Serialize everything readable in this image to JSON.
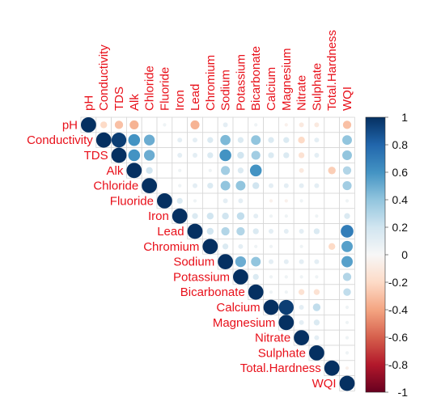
{
  "chart_data": {
    "type": "heatmap",
    "variables": [
      "pH",
      "Conductivity",
      "TDS",
      "Alk",
      "Chloride",
      "Fluoride",
      "Iron",
      "Lead",
      "Chromium",
      "Sodium",
      "Potassium",
      "Bicarbonate",
      "Calcium",
      "Magnesium",
      "Nitrate",
      "Sulphate",
      "Total.Hardness",
      "WQI"
    ],
    "matrix_shape": "upper-triangular",
    "color_scale": {
      "min": -1,
      "max": 1,
      "ticks": [
        "1",
        "0.8",
        "0.6",
        "0.4",
        "0.2",
        "0",
        "-0.2",
        "-0.4",
        "-0.6",
        "-0.8",
        "-1"
      ],
      "negative_color": "#67001f",
      "zero_color": "#f7f7f7",
      "positive_color": "#053061"
    },
    "cells": [
      {
        "r": 0,
        "c": 0,
        "v": 1
      },
      {
        "r": 0,
        "c": 1,
        "v": -0.2
      },
      {
        "r": 0,
        "c": 2,
        "v": -0.3
      },
      {
        "r": 0,
        "c": 3,
        "v": -0.35
      },
      {
        "r": 0,
        "c": 5,
        "v": 0.05
      },
      {
        "r": 0,
        "c": 7,
        "v": -0.35
      },
      {
        "r": 0,
        "c": 9,
        "v": 0.1
      },
      {
        "r": 0,
        "c": 11,
        "v": 0.05
      },
      {
        "r": 0,
        "c": 13,
        "v": -0.05
      },
      {
        "r": 0,
        "c": 14,
        "v": -0.1
      },
      {
        "r": 0,
        "c": 15,
        "v": -0.1
      },
      {
        "r": 0,
        "c": 17,
        "v": -0.3
      },
      {
        "r": 1,
        "c": 1,
        "v": 1
      },
      {
        "r": 1,
        "c": 2,
        "v": 0.95
      },
      {
        "r": 1,
        "c": 3,
        "v": 0.6
      },
      {
        "r": 1,
        "c": 4,
        "v": 0.5
      },
      {
        "r": 1,
        "c": 6,
        "v": 0.1
      },
      {
        "r": 1,
        "c": 7,
        "v": 0.1
      },
      {
        "r": 1,
        "c": 8,
        "v": 0.15
      },
      {
        "r": 1,
        "c": 9,
        "v": 0.45
      },
      {
        "r": 1,
        "c": 10,
        "v": 0.15
      },
      {
        "r": 1,
        "c": 11,
        "v": 0.4
      },
      {
        "r": 1,
        "c": 12,
        "v": 0.15
      },
      {
        "r": 1,
        "c": 13,
        "v": 0.15
      },
      {
        "r": 1,
        "c": 14,
        "v": -0.2
      },
      {
        "r": 1,
        "c": 15,
        "v": 0.1
      },
      {
        "r": 1,
        "c": 17,
        "v": 0.4
      },
      {
        "r": 2,
        "c": 2,
        "v": 1
      },
      {
        "r": 2,
        "c": 3,
        "v": 0.6
      },
      {
        "r": 2,
        "c": 4,
        "v": 0.5
      },
      {
        "r": 2,
        "c": 6,
        "v": 0.1
      },
      {
        "r": 2,
        "c": 7,
        "v": 0.1
      },
      {
        "r": 2,
        "c": 8,
        "v": 0.15
      },
      {
        "r": 2,
        "c": 9,
        "v": 0.6
      },
      {
        "r": 2,
        "c": 10,
        "v": 0.2
      },
      {
        "r": 2,
        "c": 11,
        "v": 0.35
      },
      {
        "r": 2,
        "c": 12,
        "v": 0.15
      },
      {
        "r": 2,
        "c": 13,
        "v": 0.15
      },
      {
        "r": 2,
        "c": 14,
        "v": -0.15
      },
      {
        "r": 2,
        "c": 15,
        "v": 0.1
      },
      {
        "r": 2,
        "c": 17,
        "v": 0.4
      },
      {
        "r": 3,
        "c": 3,
        "v": 1
      },
      {
        "r": 3,
        "c": 4,
        "v": 0.2
      },
      {
        "r": 3,
        "c": 6,
        "v": 0.05
      },
      {
        "r": 3,
        "c": 8,
        "v": 0.05
      },
      {
        "r": 3,
        "c": 9,
        "v": 0.35
      },
      {
        "r": 3,
        "c": 10,
        "v": 0.15
      },
      {
        "r": 3,
        "c": 11,
        "v": 0.6
      },
      {
        "r": 3,
        "c": 14,
        "v": -0.1
      },
      {
        "r": 3,
        "c": 16,
        "v": -0.25
      },
      {
        "r": 3,
        "c": 17,
        "v": 0.3
      },
      {
        "r": 4,
        "c": 4,
        "v": 1
      },
      {
        "r": 4,
        "c": 6,
        "v": 0.05
      },
      {
        "r": 4,
        "c": 7,
        "v": 0.1
      },
      {
        "r": 4,
        "c": 8,
        "v": 0.15
      },
      {
        "r": 4,
        "c": 9,
        "v": 0.4
      },
      {
        "r": 4,
        "c": 10,
        "v": 0.4
      },
      {
        "r": 4,
        "c": 11,
        "v": 0.2
      },
      {
        "r": 4,
        "c": 12,
        "v": 0.1
      },
      {
        "r": 4,
        "c": 13,
        "v": 0.1
      },
      {
        "r": 4,
        "c": 14,
        "v": 0.1
      },
      {
        "r": 4,
        "c": 15,
        "v": 0.1
      },
      {
        "r": 4,
        "c": 17,
        "v": 0.35
      },
      {
        "r": 5,
        "c": 5,
        "v": 1
      },
      {
        "r": 5,
        "c": 6,
        "v": 0.15
      },
      {
        "r": 5,
        "c": 7,
        "v": 0.05
      },
      {
        "r": 5,
        "c": 9,
        "v": 0.1
      },
      {
        "r": 5,
        "c": 10,
        "v": 0.1
      },
      {
        "r": 5,
        "c": 12,
        "v": -0.05
      },
      {
        "r": 5,
        "c": 13,
        "v": -0.05
      },
      {
        "r": 5,
        "c": 14,
        "v": 0.05
      },
      {
        "r": 5,
        "c": 17,
        "v": 0.05
      },
      {
        "r": 6,
        "c": 6,
        "v": 1
      },
      {
        "r": 6,
        "c": 7,
        "v": 0.15
      },
      {
        "r": 6,
        "c": 8,
        "v": 0.2
      },
      {
        "r": 6,
        "c": 9,
        "v": 0.2
      },
      {
        "r": 6,
        "c": 10,
        "v": 0.25
      },
      {
        "r": 6,
        "c": 11,
        "v": 0.1
      },
      {
        "r": 6,
        "c": 12,
        "v": 0.05
      },
      {
        "r": 6,
        "c": 13,
        "v": 0.05
      },
      {
        "r": 6,
        "c": 15,
        "v": 0.05
      },
      {
        "r": 6,
        "c": 17,
        "v": 0.15
      },
      {
        "r": 7,
        "c": 7,
        "v": 1
      },
      {
        "r": 7,
        "c": 8,
        "v": 0.2
      },
      {
        "r": 7,
        "c": 9,
        "v": 0.3
      },
      {
        "r": 7,
        "c": 10,
        "v": 0.3
      },
      {
        "r": 7,
        "c": 11,
        "v": 0.15
      },
      {
        "r": 7,
        "c": 12,
        "v": 0.1
      },
      {
        "r": 7,
        "c": 13,
        "v": 0.1
      },
      {
        "r": 7,
        "c": 14,
        "v": 0.1
      },
      {
        "r": 7,
        "c": 15,
        "v": 0.15
      },
      {
        "r": 7,
        "c": 17,
        "v": 0.7
      },
      {
        "r": 8,
        "c": 8,
        "v": 1
      },
      {
        "r": 8,
        "c": 9,
        "v": 0.15
      },
      {
        "r": 8,
        "c": 10,
        "v": 0.1
      },
      {
        "r": 8,
        "c": 11,
        "v": 0.05
      },
      {
        "r": 8,
        "c": 12,
        "v": 0.05
      },
      {
        "r": 8,
        "c": 14,
        "v": 0.05
      },
      {
        "r": 8,
        "c": 16,
        "v": -0.2
      },
      {
        "r": 8,
        "c": 17,
        "v": 0.55
      },
      {
        "r": 9,
        "c": 9,
        "v": 1
      },
      {
        "r": 9,
        "c": 10,
        "v": 0.5
      },
      {
        "r": 9,
        "c": 11,
        "v": 0.4
      },
      {
        "r": 9,
        "c": 12,
        "v": 0.1
      },
      {
        "r": 9,
        "c": 13,
        "v": 0.1
      },
      {
        "r": 9,
        "c": 14,
        "v": 0.1
      },
      {
        "r": 9,
        "c": 15,
        "v": 0.1
      },
      {
        "r": 9,
        "c": 17,
        "v": 0.55
      },
      {
        "r": 10,
        "c": 10,
        "v": 1
      },
      {
        "r": 10,
        "c": 11,
        "v": 0.15
      },
      {
        "r": 10,
        "c": 12,
        "v": 0.05
      },
      {
        "r": 10,
        "c": 13,
        "v": 0.05
      },
      {
        "r": 10,
        "c": 14,
        "v": 0.05
      },
      {
        "r": 10,
        "c": 15,
        "v": 0.05
      },
      {
        "r": 10,
        "c": 17,
        "v": 0.3
      },
      {
        "r": 11,
        "c": 11,
        "v": 1
      },
      {
        "r": 11,
        "c": 12,
        "v": 0.05
      },
      {
        "r": 11,
        "c": 13,
        "v": 0.05
      },
      {
        "r": 11,
        "c": 14,
        "v": -0.15
      },
      {
        "r": 11,
        "c": 15,
        "v": -0.15
      },
      {
        "r": 11,
        "c": 17,
        "v": 0.25
      },
      {
        "r": 12,
        "c": 12,
        "v": 1
      },
      {
        "r": 12,
        "c": 13,
        "v": 0.95
      },
      {
        "r": 12,
        "c": 14,
        "v": 0.1
      },
      {
        "r": 12,
        "c": 15,
        "v": 0.25
      },
      {
        "r": 12,
        "c": 17,
        "v": 0.05
      },
      {
        "r": 13,
        "c": 13,
        "v": 1
      },
      {
        "r": 13,
        "c": 14,
        "v": 0.1
      },
      {
        "r": 13,
        "c": 15,
        "v": 0.15
      },
      {
        "r": 13,
        "c": 17,
        "v": 0.05
      },
      {
        "r": 14,
        "c": 14,
        "v": 1
      },
      {
        "r": 14,
        "c": 15,
        "v": 0.1
      },
      {
        "r": 14,
        "c": 17,
        "v": 0.05
      },
      {
        "r": 15,
        "c": 15,
        "v": 1
      },
      {
        "r": 15,
        "c": 17,
        "v": 0.05
      },
      {
        "r": 16,
        "c": 16,
        "v": 1
      },
      {
        "r": 16,
        "c": 17,
        "v": -0.05
      },
      {
        "r": 17,
        "c": 17,
        "v": 1
      }
    ]
  }
}
